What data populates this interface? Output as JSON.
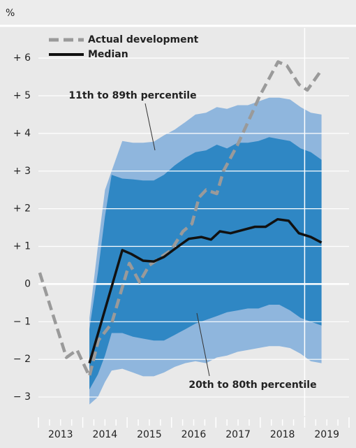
{
  "chart_data": {
    "type": "fan",
    "unit_label": "%",
    "xlim": [
      2013,
      2020
    ],
    "ylim": [
      -3.5,
      6.8
    ],
    "yticks": [
      {
        "value": 6,
        "label": "+ 6"
      },
      {
        "value": 5,
        "label": "+ 5"
      },
      {
        "value": 4,
        "label": "+ 4"
      },
      {
        "value": 3,
        "label": "+ 3"
      },
      {
        "value": 2,
        "label": "+ 2"
      },
      {
        "value": 1,
        "label": "+ 1"
      },
      0,
      {
        "value": -1,
        "label": "− 1"
      },
      {
        "value": -2,
        "label": "− 2"
      },
      {
        "value": -3,
        "label": "− 3"
      }
    ],
    "xticks": [
      2013,
      2013.25,
      2013.5,
      2013.75,
      2014,
      2014.25,
      2014.5,
      2014.75,
      2015,
      2015.25,
      2015.5,
      2015.75,
      2016,
      2016.25,
      2016.5,
      2016.75,
      2017,
      2017.25,
      2017.5,
      2017.75,
      2018,
      2018.25,
      2018.5,
      2018.75,
      2019,
      2019.25,
      2019.5,
      2019.75,
      2020
    ],
    "year_labels": [
      {
        "value": 2013.5,
        "label": "2013"
      },
      {
        "value": 2014.5,
        "label": "2014"
      },
      {
        "value": 2015.5,
        "label": "2015"
      },
      {
        "value": 2016.5,
        "label": "2016"
      },
      {
        "value": 2017.5,
        "label": "2017"
      },
      {
        "value": 2018.5,
        "label": "2018"
      },
      {
        "value": 2019.5,
        "label": "2019"
      }
    ],
    "vline": 2019,
    "grid": true,
    "bands": [
      {
        "name": "11th to 89th percentile",
        "color": "#8fb6dd",
        "x": [
          2014.15,
          2014.34,
          2014.5,
          2014.65,
          2014.89,
          2015.13,
          2015.36,
          2015.6,
          2015.83,
          2016.07,
          2016.31,
          2016.54,
          2016.78,
          2017.02,
          2017.25,
          2017.49,
          2017.72,
          2017.96,
          2018.2,
          2018.43,
          2018.67,
          2018.91,
          2019.14,
          2019.38
        ],
        "upper": [
          -0.9,
          1.0,
          2.5,
          3.0,
          3.8,
          3.75,
          3.75,
          3.78,
          3.95,
          4.1,
          4.3,
          4.5,
          4.55,
          4.7,
          4.65,
          4.75,
          4.75,
          4.85,
          4.95,
          4.95,
          4.9,
          4.7,
          4.55,
          4.5
        ],
        "lower": [
          -3.2,
          -3.0,
          -2.6,
          -2.3,
          -2.25,
          -2.35,
          -2.45,
          -2.45,
          -2.35,
          -2.2,
          -2.1,
          -2.05,
          -2.1,
          -1.95,
          -1.9,
          -1.8,
          -1.75,
          -1.7,
          -1.65,
          -1.65,
          -1.7,
          -1.85,
          -2.05,
          -2.1
        ]
      },
      {
        "name": "20th to 80th percentile",
        "color": "#2f87c4",
        "x": [
          2014.15,
          2014.34,
          2014.5,
          2014.65,
          2014.89,
          2015.13,
          2015.36,
          2015.6,
          2015.83,
          2016.07,
          2016.31,
          2016.54,
          2016.78,
          2017.02,
          2017.25,
          2017.49,
          2017.72,
          2017.96,
          2018.2,
          2018.43,
          2018.67,
          2018.91,
          2019.14,
          2019.38
        ],
        "upper": [
          -1.2,
          0.3,
          1.8,
          2.9,
          2.8,
          2.78,
          2.75,
          2.75,
          2.9,
          3.15,
          3.35,
          3.5,
          3.55,
          3.7,
          3.6,
          3.75,
          3.75,
          3.8,
          3.9,
          3.85,
          3.8,
          3.6,
          3.5,
          3.3
        ],
        "lower": [
          -2.8,
          -2.4,
          -1.9,
          -1.3,
          -1.3,
          -1.4,
          -1.45,
          -1.5,
          -1.5,
          -1.35,
          -1.2,
          -1.05,
          -0.95,
          -0.85,
          -0.75,
          -0.7,
          -0.65,
          -0.65,
          -0.55,
          -0.55,
          -0.7,
          -0.9,
          -1.0,
          -1.1
        ]
      }
    ],
    "series": [
      {
        "name": "Actual development",
        "color": "#9a9a9a",
        "dashed": true,
        "x": [
          2013.03,
          2013.63,
          2013.87,
          2014.15,
          2014.35,
          2014.65,
          2015.05,
          2015.28,
          2015.5,
          2015.99,
          2016.26,
          2016.46,
          2016.62,
          2016.78,
          2017.02,
          2017.17,
          2017.49,
          2017.8,
          2017.99,
          2018.4,
          2018.6,
          2018.87,
          2019.06,
          2019.39
        ],
        "values": [
          0.3,
          -1.95,
          -1.75,
          -2.45,
          -1.5,
          -1.05,
          0.55,
          0.05,
          0.5,
          0.9,
          1.4,
          1.6,
          2.3,
          2.5,
          2.4,
          3.0,
          3.7,
          4.5,
          5.0,
          5.9,
          5.8,
          5.3,
          5.15,
          5.7
        ]
      },
      {
        "name": "Median",
        "color": "#111111",
        "dashed": false,
        "x": [
          2014.15,
          2014.89,
          2015.09,
          2015.36,
          2015.6,
          2015.83,
          2016.15,
          2016.39,
          2016.67,
          2016.89,
          2017.09,
          2017.33,
          2017.65,
          2017.88,
          2018.12,
          2018.39,
          2018.64,
          2018.87,
          2019.14,
          2019.38
        ],
        "values": [
          -2.1,
          0.9,
          0.8,
          0.62,
          0.6,
          0.72,
          1.0,
          1.2,
          1.25,
          1.18,
          1.4,
          1.35,
          1.45,
          1.52,
          1.52,
          1.72,
          1.68,
          1.35,
          1.25,
          1.1
        ]
      }
    ]
  }
}
